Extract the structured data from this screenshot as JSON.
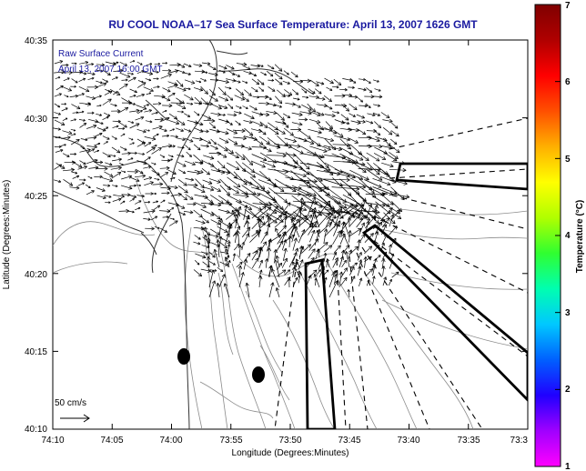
{
  "title": "RU COOL  NOAA–17  Sea Surface Temperature:  April 13, 2007 1626 GMT",
  "legend": {
    "line1": "Raw Surface Current",
    "line2": "April 13, 2007 16:00 GMT"
  },
  "scale_label": "50 cm/s",
  "x_axis": {
    "label": "Longitude (Degrees:Minutes)",
    "ticks": [
      "74:10",
      "74:05",
      "74:00",
      "73:55",
      "73:50",
      "73:45",
      "73:40",
      "73:35",
      "73:3"
    ]
  },
  "y_axis": {
    "label": "Latitude (Degrees:Minutes)",
    "ticks": [
      "40:35",
      "40:30",
      "40:25",
      "40:20",
      "40:15",
      "40:10"
    ]
  },
  "colorbar": {
    "label": "Temperature (°C)",
    "ticks": [
      "7",
      "6",
      "5",
      "4",
      "3",
      "2",
      "1"
    ],
    "min": 1,
    "max": 7,
    "colors": [
      "#ff00ff",
      "#a000ff",
      "#2000ff",
      "#0060ff",
      "#00c8ff",
      "#00ffb0",
      "#30ff30",
      "#b0ff00",
      "#ffff00",
      "#ffb000",
      "#ff5000",
      "#ff0000",
      "#b00000",
      "#800000"
    ]
  }
}
